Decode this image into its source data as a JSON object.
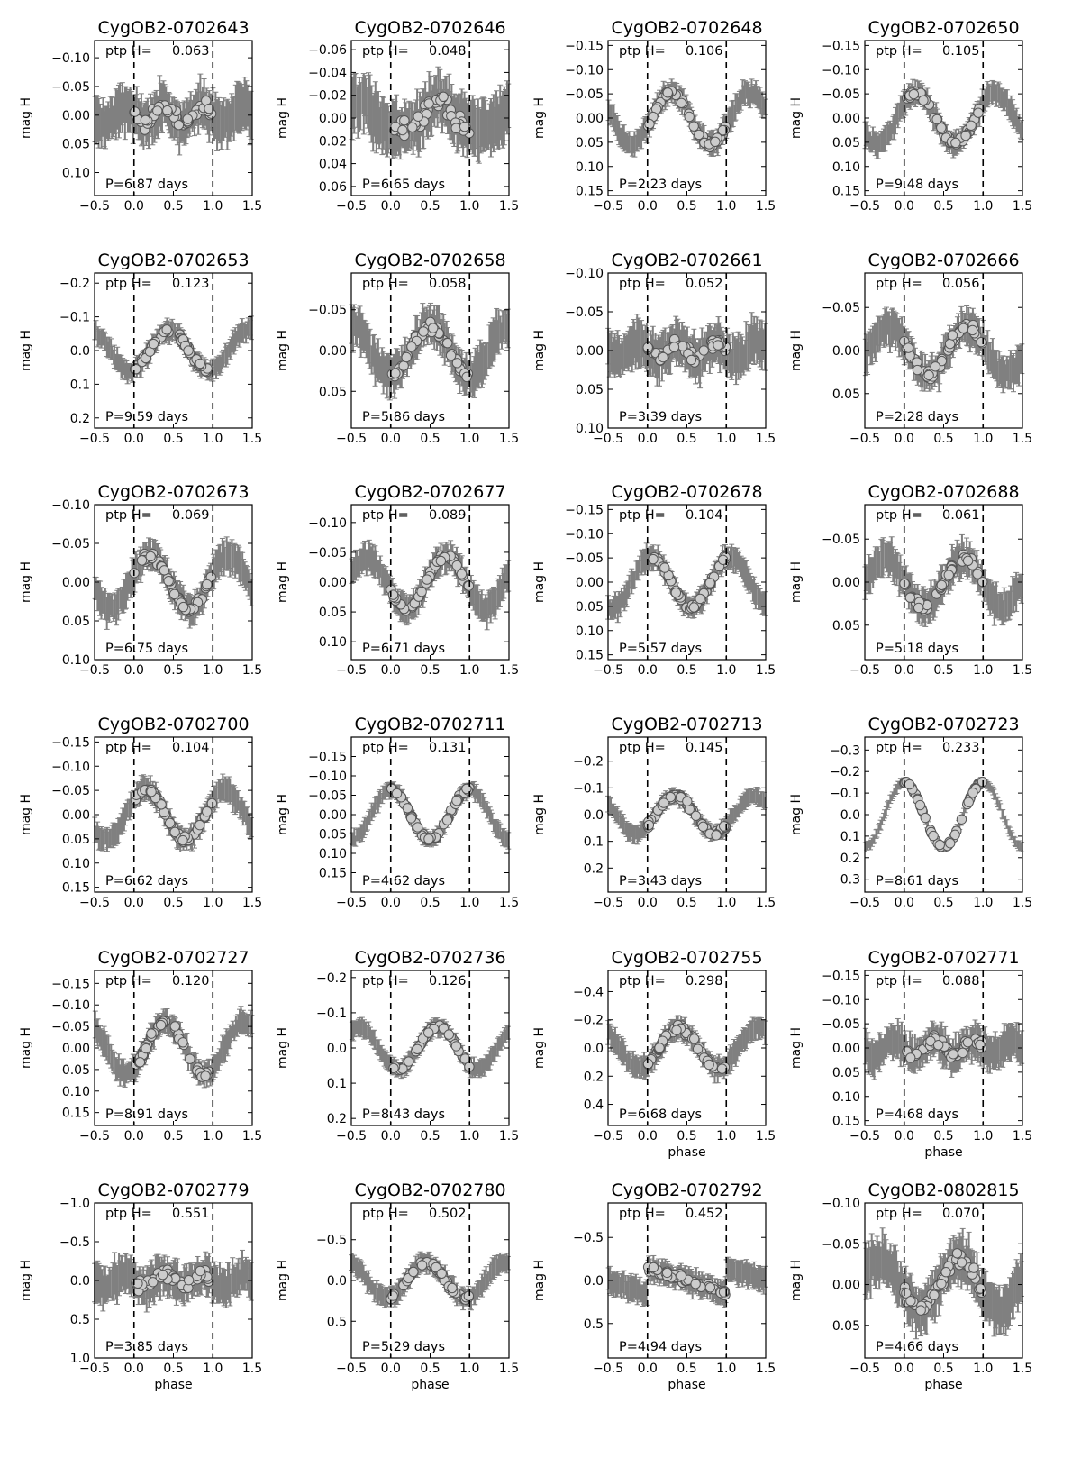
{
  "figure": {
    "xlabel": "phase",
    "ylabel": "mag H",
    "ptp_prefix": "ptp H=",
    "period_prefix": "P=",
    "period_suffix": " days",
    "colors": {
      "error_bar": "#808080",
      "marker_fill": "#cccccc",
      "marker_edge": "#555555",
      "axis": "#000000",
      "dashed": "#000000"
    }
  },
  "chart_data": [
    {
      "type": "scatter",
      "title": "CygOB2-0702643",
      "ptp": "0.063",
      "period": "6.87",
      "ylim": [
        -0.13,
        0.14
      ],
      "yticks": [
        "-0.10",
        "-0.05",
        "0.00",
        "0.05",
        "0.10"
      ],
      "ytick_values": [
        -0.1,
        -0.05,
        0.0,
        0.05,
        0.1
      ],
      "xlim": [
        -0.5,
        1.5
      ],
      "xticks": [
        "-0.5",
        "0.0",
        "0.5",
        "1.0",
        "1.5"
      ],
      "shape": "flat",
      "amp": 0.03,
      "scatter": 0.02,
      "show_xlabel": false
    },
    {
      "type": "scatter",
      "title": "CygOB2-0702646",
      "ptp": "0.048",
      "period": "6.65",
      "ylim": [
        -0.068,
        0.068
      ],
      "yticks": [
        "-0.06",
        "-0.04",
        "-0.02",
        "0.00",
        "0.02",
        "0.04",
        "0.06"
      ],
      "ytick_values": [
        -0.06,
        -0.04,
        -0.02,
        0.0,
        0.02,
        0.04,
        0.06
      ],
      "xlim": [
        -0.5,
        1.5
      ],
      "xticks": [
        "-0.5",
        "0.0",
        "0.5",
        "1.0",
        "1.5"
      ],
      "shape": "hump",
      "amp": 0.024,
      "scatter": 0.012,
      "show_xlabel": false
    },
    {
      "type": "scatter",
      "title": "CygOB2-0702648",
      "ptp": "0.106",
      "period": "2.23",
      "ylim": [
        -0.16,
        0.16
      ],
      "yticks": [
        "-0.15",
        "-0.10",
        "-0.05",
        "0.00",
        "0.05",
        "0.10",
        "0.15"
      ],
      "ytick_values": [
        -0.15,
        -0.1,
        -0.05,
        0.0,
        0.05,
        0.1,
        0.15
      ],
      "xlim": [
        -0.5,
        1.5
      ],
      "xticks": [
        "-0.5",
        "0.0",
        "0.5",
        "1.0",
        "1.5"
      ],
      "shape": "sine",
      "amp": 0.053,
      "scatter": 0.012,
      "phase0": 0.3,
      "show_xlabel": false
    },
    {
      "type": "scatter",
      "title": "CygOB2-0702650",
      "ptp": "0.105",
      "period": "9.48",
      "ylim": [
        -0.16,
        0.16
      ],
      "yticks": [
        "-0.15",
        "-0.10",
        "-0.05",
        "0.00",
        "0.05",
        "0.10",
        "0.15"
      ],
      "ytick_values": [
        -0.15,
        -0.1,
        -0.05,
        0.0,
        0.05,
        0.1,
        0.15
      ],
      "xlim": [
        -0.5,
        1.5
      ],
      "xticks": [
        "-0.5",
        "0.0",
        "0.5",
        "1.0",
        "1.5"
      ],
      "shape": "sine",
      "amp": 0.052,
      "scatter": 0.012,
      "phase0": 0.15,
      "show_xlabel": false
    },
    {
      "type": "scatter",
      "title": "CygOB2-0702653",
      "ptp": "0.123",
      "period": "9.59",
      "ylim": [
        -0.23,
        0.23
      ],
      "yticks": [
        "-0.2",
        "-0.1",
        "0.0",
        "0.1",
        "0.2"
      ],
      "ytick_values": [
        -0.2,
        -0.1,
        0.0,
        0.1,
        0.2
      ],
      "xlim": [
        -0.5,
        1.5
      ],
      "xticks": [
        "-0.5",
        "0.0",
        "0.5",
        "1.0",
        "1.5"
      ],
      "shape": "sine",
      "amp": 0.06,
      "scatter": 0.015,
      "phase0": 0.45,
      "show_xlabel": false
    },
    {
      "type": "scatter",
      "title": "CygOB2-0702658",
      "ptp": "0.058",
      "period": "5.86",
      "ylim": [
        -0.095,
        0.095
      ],
      "yticks": [
        "-0.05",
        "0.00",
        "0.05"
      ],
      "ytick_values": [
        -0.05,
        0.0,
        0.05
      ],
      "xlim": [
        -0.5,
        1.5
      ],
      "xticks": [
        "-0.5",
        "0.0",
        "0.5",
        "1.0",
        "1.5"
      ],
      "shape": "sine",
      "amp": 0.03,
      "scatter": 0.012,
      "phase0": 0.5,
      "show_xlabel": false
    },
    {
      "type": "scatter",
      "title": "CygOB2-0702661",
      "ptp": "0.052",
      "period": "3.39",
      "ylim": [
        -0.1,
        0.1
      ],
      "yticks": [
        "-0.10",
        "-0.05",
        "0.00",
        "0.05",
        "0.10"
      ],
      "ytick_values": [
        -0.1,
        -0.05,
        0.0,
        0.05,
        0.1
      ],
      "xlim": [
        -0.5,
        1.5
      ],
      "xticks": [
        "-0.5",
        "0.0",
        "0.5",
        "1.0",
        "1.5"
      ],
      "shape": "flat",
      "amp": 0.02,
      "scatter": 0.014,
      "show_xlabel": false
    },
    {
      "type": "scatter",
      "title": "CygOB2-0702666",
      "ptp": "0.056",
      "period": "2.28",
      "ylim": [
        -0.09,
        0.09
      ],
      "yticks": [
        "-0.05",
        "0.00",
        "0.05"
      ],
      "ytick_values": [
        -0.05,
        0.0,
        0.05
      ],
      "xlim": [
        -0.5,
        1.5
      ],
      "xticks": [
        "-0.5",
        "0.0",
        "0.5",
        "1.0",
        "1.5"
      ],
      "shape": "sine",
      "amp": 0.028,
      "scatter": 0.01,
      "phase0": 0.8,
      "show_xlabel": false
    },
    {
      "type": "scatter",
      "title": "CygOB2-0702673",
      "ptp": "0.069",
      "period": "6.75",
      "ylim": [
        -0.1,
        0.1
      ],
      "yticks": [
        "-0.10",
        "-0.05",
        "0.00",
        "0.05",
        "0.10"
      ],
      "ytick_values": [
        -0.1,
        -0.05,
        0.0,
        0.05,
        0.1
      ],
      "xlim": [
        -0.5,
        1.5
      ],
      "xticks": [
        "-0.5",
        "0.0",
        "0.5",
        "1.0",
        "1.5"
      ],
      "shape": "sine",
      "amp": 0.034,
      "scatter": 0.01,
      "phase0": 0.2,
      "show_xlabel": false
    },
    {
      "type": "scatter",
      "title": "CygOB2-0702677",
      "ptp": "0.089",
      "period": "6.71",
      "ylim": [
        -0.13,
        0.13
      ],
      "yticks": [
        "-0.10",
        "-0.05",
        "0.00",
        "0.05",
        "0.10"
      ],
      "ytick_values": [
        -0.1,
        -0.05,
        0.0,
        0.05,
        0.1
      ],
      "xlim": [
        -0.5,
        1.5
      ],
      "xticks": [
        "-0.5",
        "0.0",
        "0.5",
        "1.0",
        "1.5"
      ],
      "shape": "sine",
      "amp": 0.044,
      "scatter": 0.012,
      "phase0": 0.7,
      "show_xlabel": false
    },
    {
      "type": "scatter",
      "title": "CygOB2-0702678",
      "ptp": "0.104",
      "period": "5.57",
      "ylim": [
        -0.16,
        0.16
      ],
      "yticks": [
        "-0.15",
        "-0.10",
        "-0.05",
        "0.00",
        "0.05",
        "0.10",
        "0.15"
      ],
      "ytick_values": [
        -0.15,
        -0.1,
        -0.05,
        0.0,
        0.05,
        0.1,
        0.15
      ],
      "xlim": [
        -0.5,
        1.5
      ],
      "xticks": [
        "-0.5",
        "0.0",
        "0.5",
        "1.0",
        "1.5"
      ],
      "shape": "sine",
      "amp": 0.052,
      "scatter": 0.012,
      "phase0": 0.05,
      "show_xlabel": false
    },
    {
      "type": "scatter",
      "title": "CygOB2-0702688",
      "ptp": "0.061",
      "period": "5.18",
      "ylim": [
        -0.09,
        0.09
      ],
      "yticks": [
        "-0.05",
        "0.00",
        "0.05"
      ],
      "ytick_values": [
        -0.05,
        0.0,
        0.05
      ],
      "xlim": [
        -0.5,
        1.5
      ],
      "xticks": [
        "-0.5",
        "0.0",
        "0.5",
        "1.0",
        "1.5"
      ],
      "shape": "sine",
      "amp": 0.028,
      "scatter": 0.01,
      "phase0": 0.75,
      "show_xlabel": false
    },
    {
      "type": "scatter",
      "title": "CygOB2-0702700",
      "ptp": "0.104",
      "period": "6.62",
      "ylim": [
        -0.16,
        0.16
      ],
      "yticks": [
        "-0.15",
        "-0.10",
        "-0.05",
        "0.00",
        "0.05",
        "0.10",
        "0.15"
      ],
      "ytick_values": [
        -0.15,
        -0.1,
        -0.05,
        0.0,
        0.05,
        0.1,
        0.15
      ],
      "xlim": [
        -0.5,
        1.5
      ],
      "xticks": [
        "-0.5",
        "0.0",
        "0.5",
        "1.0",
        "1.5"
      ],
      "shape": "sine",
      "amp": 0.052,
      "scatter": 0.012,
      "phase0": 0.15,
      "show_xlabel": false
    },
    {
      "type": "scatter",
      "title": "CygOB2-0702711",
      "ptp": "0.131",
      "period": "4.62",
      "ylim": [
        -0.2,
        0.2
      ],
      "yticks": [
        "-0.15",
        "-0.10",
        "-0.05",
        "0.00",
        "0.05",
        "0.10",
        "0.15"
      ],
      "ytick_values": [
        -0.15,
        -0.1,
        -0.05,
        0.0,
        0.05,
        0.1,
        0.15
      ],
      "xlim": [
        -0.5,
        1.5
      ],
      "xticks": [
        "-0.5",
        "0.0",
        "0.5",
        "1.0",
        "1.5"
      ],
      "shape": "sine",
      "amp": 0.065,
      "scatter": 0.01,
      "phase0": 0.0,
      "show_xlabel": false
    },
    {
      "type": "scatter",
      "title": "CygOB2-0702713",
      "ptp": "0.145",
      "period": "3.43",
      "ylim": [
        -0.29,
        0.29
      ],
      "yticks": [
        "-0.2",
        "-0.1",
        "0.0",
        "0.1",
        "0.2"
      ],
      "ytick_values": [
        -0.2,
        -0.1,
        0.0,
        0.1,
        0.2
      ],
      "xlim": [
        -0.5,
        1.5
      ],
      "xticks": [
        "-0.5",
        "0.0",
        "0.5",
        "1.0",
        "1.5"
      ],
      "shape": "sine",
      "amp": 0.07,
      "scatter": 0.015,
      "phase0": 0.35,
      "show_xlabel": false
    },
    {
      "type": "scatter",
      "title": "CygOB2-0702723",
      "ptp": "0.233",
      "period": "8.61",
      "ylim": [
        -0.36,
        0.36
      ],
      "yticks": [
        "-0.3",
        "-0.2",
        "-0.1",
        "0.0",
        "0.1",
        "0.2",
        "0.3"
      ],
      "ytick_values": [
        -0.3,
        -0.2,
        -0.1,
        0.0,
        0.1,
        0.2,
        0.3
      ],
      "xlim": [
        -0.5,
        1.5
      ],
      "xticks": [
        "-0.5",
        "0.0",
        "0.5",
        "1.0",
        "1.5"
      ],
      "shape": "sine",
      "amp": 0.15,
      "scatter": 0.01,
      "phase0": 0.0,
      "show_xlabel": false
    },
    {
      "type": "scatter",
      "title": "CygOB2-0702727",
      "ptp": "0.120",
      "period": "8.91",
      "ylim": [
        -0.18,
        0.18
      ],
      "yticks": [
        "-0.15",
        "-0.10",
        "-0.05",
        "0.00",
        "0.05",
        "0.10",
        "0.15"
      ],
      "ytick_values": [
        -0.15,
        -0.1,
        -0.05,
        0.0,
        0.05,
        0.1,
        0.15
      ],
      "xlim": [
        -0.5,
        1.5
      ],
      "xticks": [
        "-0.5",
        "0.0",
        "0.5",
        "1.0",
        "1.5"
      ],
      "shape": "sine",
      "amp": 0.06,
      "scatter": 0.014,
      "phase0": 0.4,
      "show_xlabel": false
    },
    {
      "type": "scatter",
      "title": "CygOB2-0702736",
      "ptp": "0.126",
      "period": "8.43",
      "ylim": [
        -0.22,
        0.22
      ],
      "yticks": [
        "-0.2",
        "-0.1",
        "0.0",
        "0.1",
        "0.2"
      ],
      "ytick_values": [
        -0.2,
        -0.1,
        0.0,
        0.1,
        0.2
      ],
      "xlim": [
        -0.5,
        1.5
      ],
      "xticks": [
        "-0.5",
        "0.0",
        "0.5",
        "1.0",
        "1.5"
      ],
      "shape": "sine",
      "amp": 0.06,
      "scatter": 0.012,
      "phase0": 0.6,
      "show_xlabel": false
    },
    {
      "type": "scatter",
      "title": "CygOB2-0702755",
      "ptp": "0.298",
      "period": "6.68",
      "ylim": [
        -0.55,
        0.55
      ],
      "yticks": [
        "-0.4",
        "-0.2",
        "0.0",
        "0.2",
        "0.4"
      ],
      "ytick_values": [
        -0.4,
        -0.2,
        0.0,
        0.2,
        0.4
      ],
      "xlim": [
        -0.5,
        1.5
      ],
      "xticks": [
        "-0.5",
        "0.0",
        "0.5",
        "1.0",
        "1.5"
      ],
      "shape": "sine",
      "amp": 0.14,
      "scatter": 0.04,
      "phase0": 0.4,
      "show_xlabel": true
    },
    {
      "type": "scatter",
      "title": "CygOB2-0702771",
      "ptp": "0.088",
      "period": "4.68",
      "ylim": [
        -0.16,
        0.16
      ],
      "yticks": [
        "-0.15",
        "-0.10",
        "-0.05",
        "0.00",
        "0.05",
        "0.10",
        "0.15"
      ],
      "ytick_values": [
        -0.15,
        -0.1,
        -0.05,
        0.0,
        0.05,
        0.1,
        0.15
      ],
      "xlim": [
        -0.5,
        1.5
      ],
      "xticks": [
        "-0.5",
        "0.0",
        "0.5",
        "1.0",
        "1.5"
      ],
      "shape": "flat",
      "amp": 0.03,
      "scatter": 0.018,
      "show_xlabel": true
    },
    {
      "type": "scatter",
      "title": "CygOB2-0702779",
      "ptp": "0.551",
      "period": "3.85",
      "ylim": [
        -1.0,
        1.0
      ],
      "yticks": [
        "-1.0",
        "-0.5",
        "0.0",
        "0.5",
        "1.0"
      ],
      "ytick_values": [
        -1.0,
        -0.5,
        0.0,
        0.5,
        1.0
      ],
      "xlim": [
        -0.5,
        1.5
      ],
      "xticks": [
        "-0.5",
        "0.0",
        "0.5",
        "1.0",
        "1.5"
      ],
      "shape": "flat",
      "amp": 0.15,
      "scatter": 0.12,
      "show_xlabel": true
    },
    {
      "type": "scatter",
      "title": "CygOB2-0702780",
      "ptp": "0.502",
      "period": "5.29",
      "ylim": [
        -0.95,
        0.95
      ],
      "yticks": [
        "-0.5",
        "0.0",
        "0.5"
      ],
      "ytick_values": [
        -0.5,
        0.0,
        0.5
      ],
      "xlim": [
        -0.5,
        1.5
      ],
      "xticks": [
        "-0.5",
        "0.0",
        "0.5",
        "1.0",
        "1.5"
      ],
      "shape": "sine",
      "amp": 0.22,
      "scatter": 0.06,
      "phase0": 0.45,
      "show_xlabel": true
    },
    {
      "type": "scatter",
      "title": "CygOB2-0702792",
      "ptp": "0.452",
      "period": "4.94",
      "ylim": [
        -0.9,
        0.9
      ],
      "yticks": [
        "-0.5",
        "0.0",
        "0.5"
      ],
      "ytick_values": [
        -0.5,
        0.0,
        0.5
      ],
      "xlim": [
        -0.5,
        1.5
      ],
      "xticks": [
        "-0.5",
        "0.0",
        "0.5",
        "1.0",
        "1.5"
      ],
      "shape": "ramp",
      "amp": 0.15,
      "scatter": 0.07,
      "show_xlabel": true
    },
    {
      "type": "scatter",
      "title": "CygOB2-0802815",
      "ptp": "0.070",
      "period": "4.66",
      "ylim": [
        -0.1,
        0.09
      ],
      "yticks": [
        "-0.10",
        "-0.05",
        "0.00",
        "0.05"
      ],
      "ytick_values": [
        -0.1,
        -0.05,
        0.0,
        0.05
      ],
      "xlim": [
        -0.5,
        1.5
      ],
      "xticks": [
        "-0.5",
        "0.0",
        "0.5",
        "1.0",
        "1.5"
      ],
      "shape": "sine",
      "amp": 0.03,
      "scatter": 0.014,
      "phase0": 0.7,
      "show_xlabel": true
    }
  ]
}
